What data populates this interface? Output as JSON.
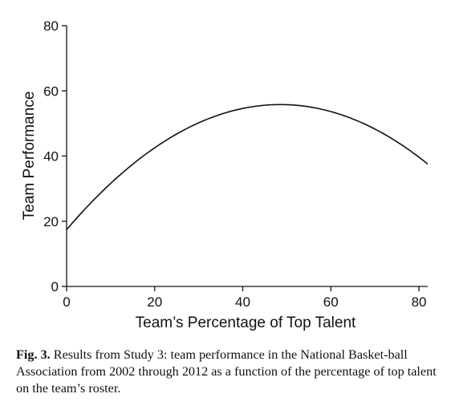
{
  "chart_data": {
    "type": "line",
    "xlabel": "Team’s Percentage of Top Talent",
    "ylabel": "Team Performance",
    "xlim": [
      0,
      82
    ],
    "ylim": [
      0,
      80
    ],
    "xticks": [
      0,
      20,
      40,
      60,
      80
    ],
    "yticks": [
      0,
      20,
      40,
      60,
      80
    ],
    "grid": false,
    "series": [
      {
        "curve": "quadratic",
        "x": [
          0,
          10,
          20,
          30,
          40,
          48,
          50,
          60,
          70,
          82
        ],
        "y": [
          17.2,
          31.5,
          42.6,
          50.5,
          55.0,
          56.2,
          56.1,
          53.0,
          46.5,
          38.8
        ]
      }
    ]
  },
  "caption": {
    "label": "Fig. 3.",
    "text": "Results from Study 3: team performance in the National Basket-ball Association from 2002 through 2012 as a function of the percentage of top talent on the team’s roster."
  }
}
